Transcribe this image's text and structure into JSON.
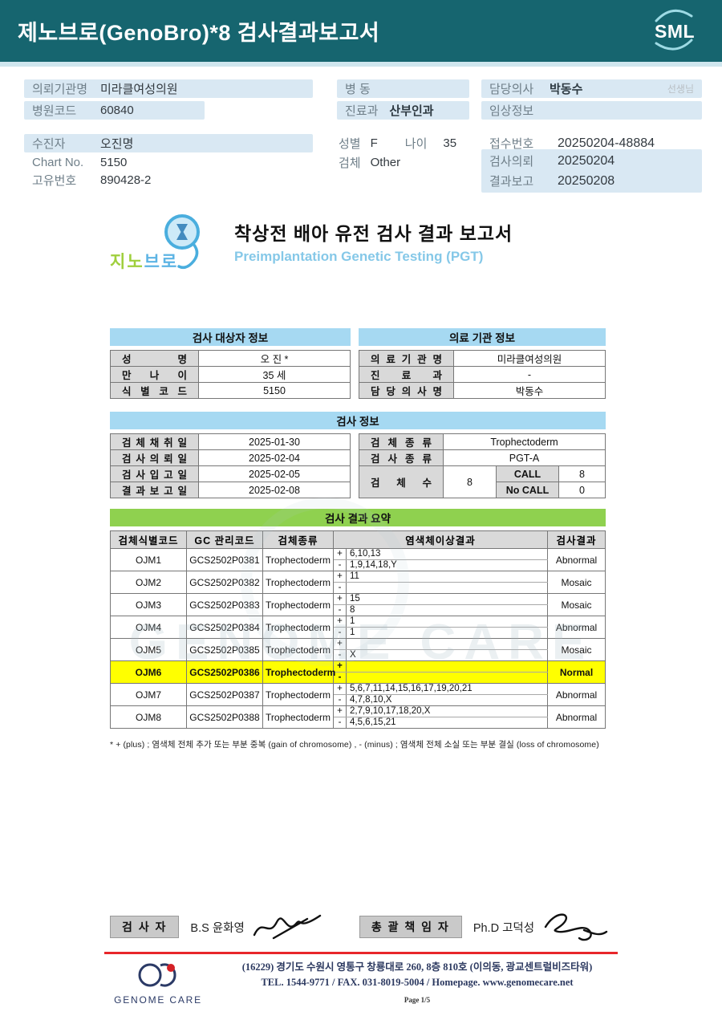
{
  "colors": {
    "banner_teal": "#16656f",
    "banner_strip": "#cfe6ee",
    "info_bar_blue": "#d9e8f3",
    "section_header_blue": "#a6d9f2",
    "section_header_green": "#8fd14f",
    "table_label_gray": "#d9d9d9",
    "highlight_yellow": "#ffff00",
    "footer_line_red": "#e8262a"
  },
  "banner": {
    "title": "제노브로(GenoBro)*8 검사결과보고서",
    "logo_text": "SML"
  },
  "patient": {
    "left": [
      {
        "label": "의뢰기관명",
        "value": "미라클여성의원"
      },
      {
        "label": "병원코드",
        "value": "60840"
      },
      {
        "label": "수진자",
        "value": "오진명"
      },
      {
        "label": "Chart No.",
        "value": "5150"
      },
      {
        "label": "고유번호",
        "value": "890428-2"
      }
    ],
    "middle": {
      "ward_label": "병  동",
      "ward_value": "",
      "dept_label": "진료과",
      "dept_value": "산부인과",
      "sex_label": "성별",
      "sex_value": "F",
      "age_label": "나이",
      "age_value": "35",
      "specimen_label": "검체",
      "specimen_value": "Other"
    },
    "right": {
      "doctor_label": "담당의사",
      "doctor_value": "박동수",
      "doctor_suffix": "선생님",
      "clinical_label": "임상정보",
      "clinical_value": "",
      "receipt_label": "접수번호",
      "receipt_value": "20250204-48884",
      "request_label": "검사의뢰",
      "request_value": "20250204",
      "report_label": "결과보고",
      "report_value": "20250208"
    }
  },
  "report": {
    "logo": {
      "kr_green": "지노",
      "kr_blue": "브로"
    },
    "title_kr": "착상전 배아 유전 검사 결과 보고서",
    "title_en": "Preimplantation Genetic Testing (PGT)",
    "subject": {
      "title": "검사 대상자 정보",
      "rows": [
        {
          "label": "성 명",
          "value": "오 진 *"
        },
        {
          "label": "만 나 이",
          "value": "35 세"
        },
        {
          "label": "식 별 코 드",
          "value": "5150"
        }
      ]
    },
    "org": {
      "title": "의료 기관 정보",
      "rows": [
        {
          "label": "의 료 기 관 명",
          "value": "미라클여성의원"
        },
        {
          "label": "진 료 과",
          "value": "-"
        },
        {
          "label": "담 당 의 사 명",
          "value": "박동수"
        }
      ]
    },
    "test_info": {
      "title": "검사 정보",
      "left_rows": [
        {
          "label": "검 체 채 취 일",
          "value": "2025-01-30"
        },
        {
          "label": "검 사 의 뢰 일",
          "value": "2025-02-04"
        },
        {
          "label": "검 사 입 고 일",
          "value": "2025-02-05"
        },
        {
          "label": "결 과 보 고 일",
          "value": "2025-02-08"
        }
      ],
      "specimen_type_label": "검 체  종 류",
      "specimen_type": "Trophectoderm",
      "test_type_label": "검 사  종 류",
      "test_type": "PGT-A",
      "count_label": "검  체  수",
      "count": "8",
      "call_label": "CALL",
      "call": "8",
      "nocall_label": "No CALL",
      "nocall": "0"
    },
    "summary": {
      "title": "검사 결과 요약",
      "headers": [
        "검체식별코드",
        "GC 관리코드",
        "검체종류",
        "염색체이상결과",
        "검사결과"
      ],
      "rows": [
        {
          "id": "OJM1",
          "gc": "GCS2502P0381",
          "type": "Trophectoderm",
          "plus": "6,10,13",
          "minus": "1,9,14,18,Y",
          "result": "Abnormal",
          "highlight": false
        },
        {
          "id": "OJM2",
          "gc": "GCS2502P0382",
          "type": "Trophectoderm",
          "plus": "11",
          "minus": "",
          "result": "Mosaic",
          "highlight": false
        },
        {
          "id": "OJM3",
          "gc": "GCS2502P0383",
          "type": "Trophectoderm",
          "plus": "15",
          "minus": "8",
          "result": "Mosaic",
          "highlight": false
        },
        {
          "id": "OJM4",
          "gc": "GCS2502P0384",
          "type": "Trophectoderm",
          "plus": "1",
          "minus": "1",
          "result": "Abnormal",
          "highlight": false
        },
        {
          "id": "OJM5",
          "gc": "GCS2502P0385",
          "type": "Trophectoderm",
          "plus": "",
          "minus": "X",
          "result": "Mosaic",
          "highlight": false
        },
        {
          "id": "OJM6",
          "gc": "GCS2502P0386",
          "type": "Trophectoderm",
          "plus": "",
          "minus": "",
          "result": "Normal",
          "highlight": true
        },
        {
          "id": "OJM7",
          "gc": "GCS2502P0387",
          "type": "Trophectoderm",
          "plus": "5,6,7,11,14,15,16,17,19,20,21",
          "minus": "4,7,8,10,X",
          "result": "Abnormal",
          "highlight": false
        },
        {
          "id": "OJM8",
          "gc": "GCS2502P0388",
          "type": "Trophectoderm",
          "plus": "2,7,9,10,17,18,20,X",
          "minus": "4,5,6,15,21",
          "result": "Abnormal",
          "highlight": false
        }
      ],
      "footnote": "* + (plus) ; 염색체 전체 추가 또는 부분 중복 (gain of chromosome) , - (minus) ; 염색체 전체 소실 또는 부분 결실 (loss of chromosome)"
    },
    "watermark": "GENOME CARE"
  },
  "signatures": {
    "tester_label": "검 사 자",
    "tester_name": "B.S 윤화영",
    "director_label": "총 괄 책 임 자",
    "director_name": "Ph.D 고덕성"
  },
  "footer": {
    "company": "GENOME CARE",
    "address": "(16229) 경기도 수원시 영통구 창룡대로 260, 8층 810호 (이의동, 광교센트럴비즈타워)",
    "contact": "TEL. 1544-9771 / FAX. 031-8019-5004 / Homepage. www.genomecare.net",
    "page": "Page 1/5"
  }
}
